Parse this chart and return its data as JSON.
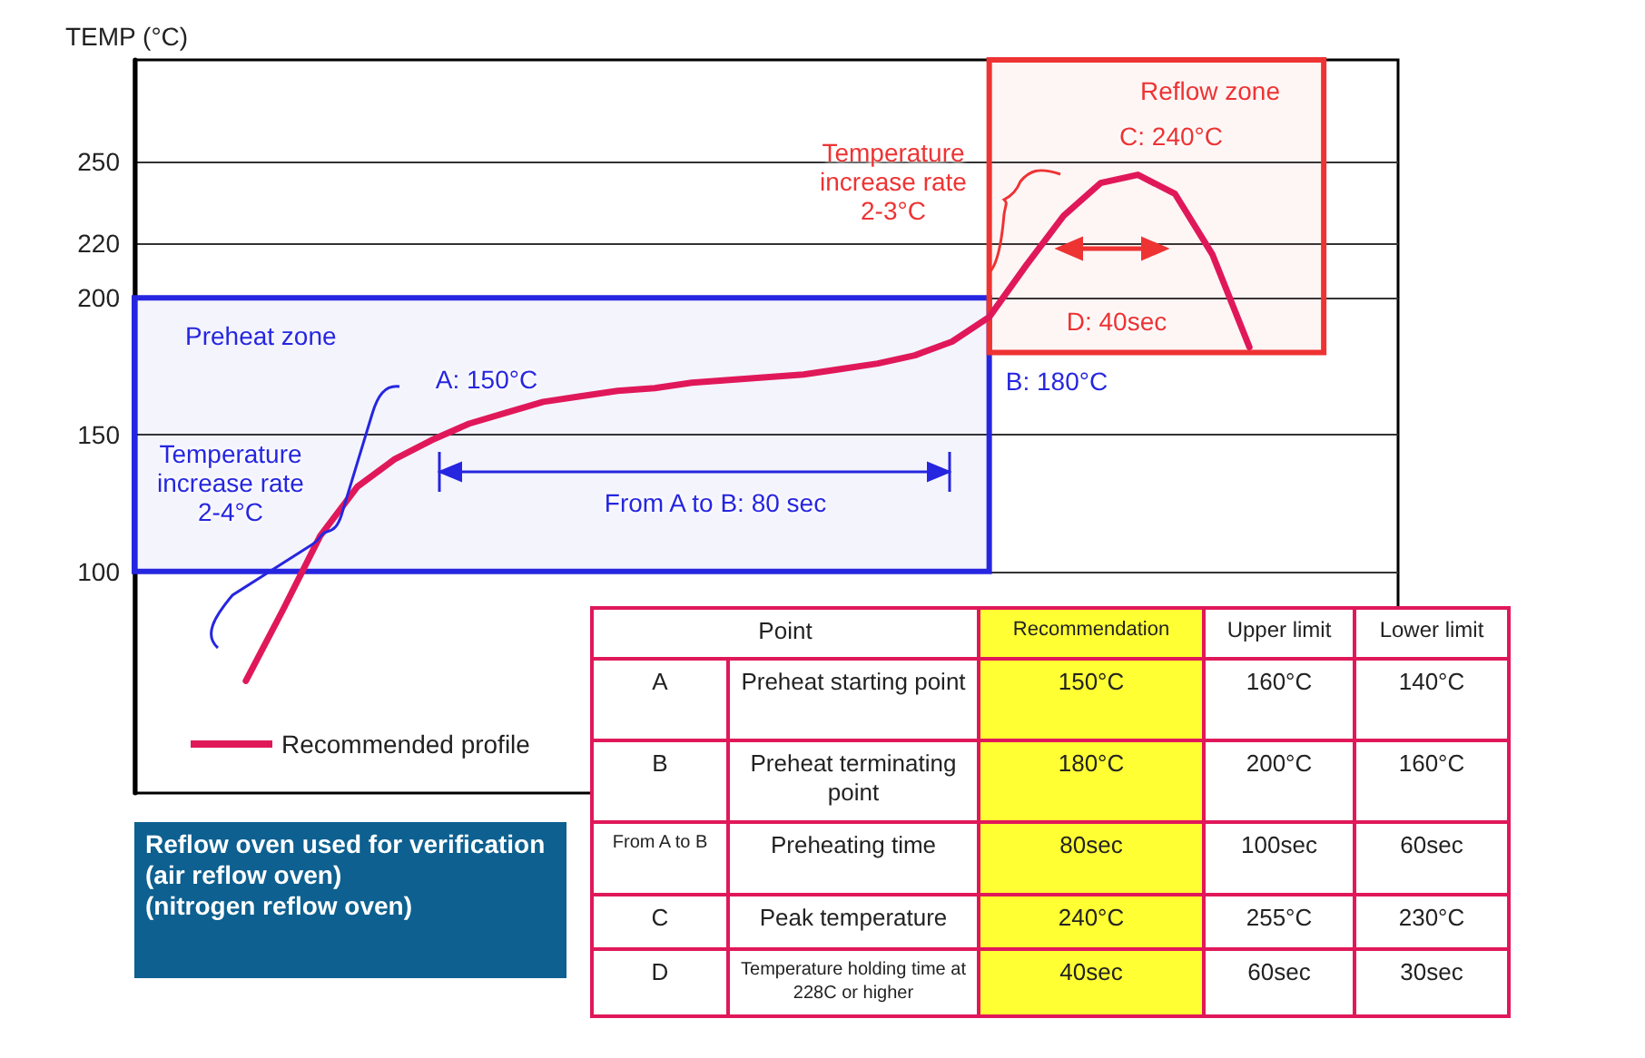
{
  "chart_data": [
    {
      "type": "line",
      "ylabel": "TEMP (°C)",
      "categories": [
        null,
        null,
        null,
        null,
        null,
        null,
        null,
        null,
        null,
        null,
        null,
        null,
        null,
        null,
        null,
        null,
        null,
        null,
        null,
        null,
        null,
        null,
        null,
        null,
        null,
        null,
        null,
        null,
        null,
        null,
        null,
        null,
        null,
        null,
        null
      ],
      "series": [
        {
          "name": "Recommended profile",
          "color": "#e0185a",
          "values": [
            null,
            null,
            null,
            60,
            86,
            113,
            131,
            141,
            148,
            154,
            158,
            162,
            164,
            166,
            167,
            169,
            170,
            171,
            172,
            174,
            176,
            179,
            184,
            193,
            212,
            230,
            242,
            245,
            238,
            216,
            182,
            null,
            null,
            null,
            null
          ]
        }
      ],
      "ylim": [
        19,
        287
      ],
      "yticks": [
        100,
        150,
        200,
        220,
        250
      ],
      "grid": "y",
      "legend": "bottom left",
      "marker": "none",
      "bands": [
        {
          "axis": "y",
          "from": 100,
          "to": 200,
          "label": "Preheat zone",
          "color": "#2626e0"
        },
        {
          "axis": "y",
          "from": 180,
          "to": 287,
          "label": "Reflow zone",
          "color": "#ee3333"
        }
      ],
      "annotations": [
        "A: 150°C",
        "B: 180°C",
        "C: 240°C",
        "D: 40sec",
        "From A to B: 80 sec",
        "Temperature increase rate 2-4°C",
        "Temperature increase rate 2-3°C"
      ]
    },
    {
      "type": "other",
      "annotations": [
        "Point",
        "Recommendation",
        "Upper limit",
        "Lower limit",
        "A",
        "Preheat starting point",
        "150°C",
        "160°C",
        "140°C",
        "B",
        "Preheat terminating point",
        "180°C",
        "200°C",
        "160°C",
        "From A to B",
        "Preheating time",
        "80sec",
        "100sec",
        "60sec",
        "C",
        "Peak temperature",
        "240°C",
        "255°C",
        "230°C",
        "D",
        "Temperature holding time at 228C or higher",
        "40sec",
        "60sec",
        "30sec"
      ]
    },
    {
      "type": "other",
      "annotations": [
        "Reflow oven used for verification",
        "(air reflow oven)",
        "(nitrogen reflow oven)"
      ]
    }
  ]
}
